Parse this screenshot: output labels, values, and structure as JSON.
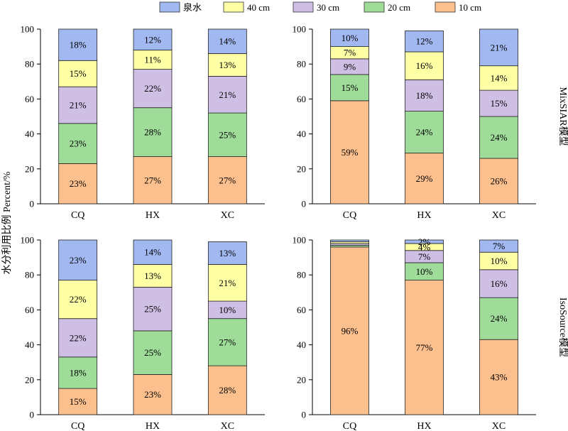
{
  "figure": {
    "ylabel": "水分利用比例 Percent/%",
    "legend": {
      "placement": "top-center",
      "entries": [
        {
          "name": "泉水",
          "color": "#a2b8f1"
        },
        {
          "name": "40 cm",
          "color": "#ffffa6"
        },
        {
          "name": "30 cm",
          "color": "#cfbfe5"
        },
        {
          "name": "20 cm",
          "color": "#9fdc9a"
        },
        {
          "name": "10 cm",
          "color": "#fbc08d"
        }
      ]
    },
    "row_labels": [
      "MixSIAR模型",
      "IsoSource模型"
    ]
  },
  "chart_data": [
    {
      "type": "bar",
      "stacked": true,
      "model": "MixSIAR模型",
      "categories": [
        "CQ",
        "HX",
        "XC"
      ],
      "ylim": [
        0,
        100
      ],
      "yticks": [
        0,
        20,
        40,
        60,
        80,
        100
      ],
      "series": [
        {
          "name": "10 cm",
          "values": [
            23,
            27,
            27
          ],
          "labels": [
            "23%",
            "27%",
            "27%"
          ]
        },
        {
          "name": "20 cm",
          "values": [
            23,
            28,
            25
          ],
          "labels": [
            "23%",
            "28%",
            "25%"
          ]
        },
        {
          "name": "30 cm",
          "values": [
            21,
            22,
            21
          ],
          "labels": [
            "21%",
            "22%",
            "21%"
          ]
        },
        {
          "name": "40 cm",
          "values": [
            15,
            11,
            13
          ],
          "labels": [
            "15%",
            "11%",
            "13%"
          ]
        },
        {
          "name": "泉水",
          "values": [
            18,
            12,
            14
          ],
          "labels": [
            "18%",
            "12%",
            "14%"
          ]
        }
      ]
    },
    {
      "type": "bar",
      "stacked": true,
      "model": "MixSIAR模型",
      "categories": [
        "CQ",
        "HX",
        "XC"
      ],
      "ylim": [
        0,
        100
      ],
      "yticks": [
        0,
        20,
        40,
        60,
        80,
        100
      ],
      "series": [
        {
          "name": "10 cm",
          "values": [
            59,
            29,
            26
          ],
          "labels": [
            "59%",
            "29%",
            "26%"
          ]
        },
        {
          "name": "20 cm",
          "values": [
            15,
            24,
            24
          ],
          "labels": [
            "15%",
            "24%",
            "24%"
          ]
        },
        {
          "name": "30 cm",
          "values": [
            9,
            18,
            15
          ],
          "labels": [
            "9%",
            "18%",
            "15%"
          ]
        },
        {
          "name": "40 cm",
          "values": [
            7,
            16,
            14
          ],
          "labels": [
            "7%",
            "16%",
            "14%"
          ]
        },
        {
          "name": "泉水",
          "values": [
            10,
            12,
            21
          ],
          "labels": [
            "10%",
            "12%",
            "21%"
          ]
        }
      ]
    },
    {
      "type": "bar",
      "stacked": true,
      "model": "IsoSource模型",
      "categories": [
        "CQ",
        "HX",
        "XC"
      ],
      "ylim": [
        0,
        100
      ],
      "yticks": [
        0,
        20,
        40,
        60,
        80,
        100
      ],
      "series": [
        {
          "name": "10 cm",
          "values": [
            15,
            23,
            28
          ],
          "labels": [
            "15%",
            "23%",
            "28%"
          ]
        },
        {
          "name": "20 cm",
          "values": [
            18,
            25,
            27
          ],
          "labels": [
            "18%",
            "25%",
            "27%"
          ]
        },
        {
          "name": "30 cm",
          "values": [
            22,
            25,
            10
          ],
          "labels": [
            "22%",
            "25%",
            "10%"
          ]
        },
        {
          "name": "40 cm",
          "values": [
            22,
            13,
            21
          ],
          "labels": [
            "22%",
            "13%",
            "21%"
          ]
        },
        {
          "name": "泉水",
          "values": [
            23,
            14,
            13
          ],
          "labels": [
            "23%",
            "14%",
            "13%"
          ]
        }
      ]
    },
    {
      "type": "bar",
      "stacked": true,
      "model": "IsoSource模型",
      "categories": [
        "CQ",
        "HX",
        "XC"
      ],
      "ylim": [
        0,
        100
      ],
      "yticks": [
        0,
        20,
        40,
        60,
        80,
        100
      ],
      "series": [
        {
          "name": "10 cm",
          "values": [
            96,
            77,
            43
          ],
          "labels": [
            "96%",
            "77%",
            "43%"
          ]
        },
        {
          "name": "20 cm",
          "values": [
            1,
            10,
            24
          ],
          "labels": [
            "",
            "10%",
            "24%"
          ]
        },
        {
          "name": "30 cm",
          "values": [
            1,
            7,
            16
          ],
          "labels": [
            "",
            "7%",
            "16%"
          ]
        },
        {
          "name": "40 cm",
          "values": [
            1,
            4,
            10
          ],
          "labels": [
            "",
            "4%",
            "10%"
          ]
        },
        {
          "name": "泉水",
          "values": [
            1,
            2,
            7
          ],
          "labels": [
            "",
            "2%",
            "7%"
          ]
        }
      ]
    }
  ]
}
